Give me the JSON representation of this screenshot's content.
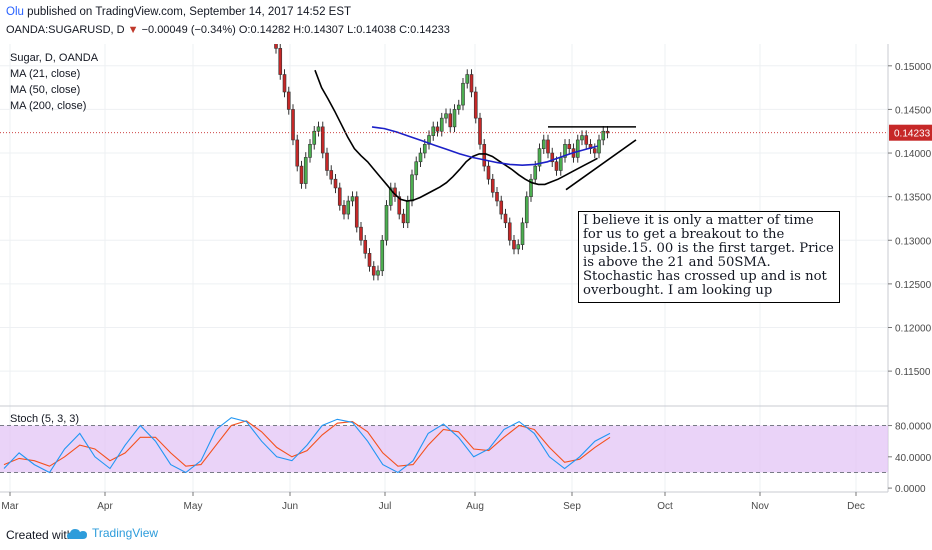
{
  "header": {
    "author": "Olu",
    "published": "published on TradingView.com, September 14, 2017 14:52 EST",
    "symbol": "OANDA:SUGARUSD, D",
    "change_arrow": "▼",
    "change": "−0.00049 (−0.34%)",
    "ohlc": "O:0.14282 H:0.14307 L:0.14038 C:0.14233"
  },
  "legend": [
    "Sugar, D, OANDA",
    "MA (21, close)",
    "MA (50, close)",
    "MA (200, close)"
  ],
  "stoch_label": "Stoch (5, 3, 3)",
  "annotation": "I believe it is only a matter of time for us to get a breakout to the upside.15. 00 is the first target. Price is above the 21 and 50SMA. Stochastic has crossed up and is not overbought. I am looking up",
  "footer": {
    "created": "Created with",
    "brand": "TradingView"
  },
  "colors": {
    "up": "#4caf50",
    "down": "#c62828",
    "ma21": "#000000",
    "ma50": "#1c20c8",
    "stoch_k": "#2196f3",
    "stoch_d": "#f4511e",
    "band_fill": "#e3c4f5",
    "price_line": "#c62828"
  },
  "chart_data": {
    "type": "candlestick",
    "price_axis": {
      "ticks": [
        "0.15000",
        "0.14500",
        "0.14000",
        "0.13500",
        "0.13000",
        "0.12500",
        "0.12000",
        "0.11500"
      ],
      "range": [
        0.111,
        0.1525
      ]
    },
    "last_price_label": "0.14233",
    "last_price": 0.14233,
    "time_axis": [
      "Mar",
      "Apr",
      "May",
      "Jun",
      "Jul",
      "Aug",
      "Sep",
      "Oct",
      "Nov",
      "Dec"
    ],
    "stoch_axis": {
      "ticks": [
        "80.0000",
        "40.0000",
        "0.0000"
      ],
      "range": [
        -5,
        105
      ],
      "upper_band": 80,
      "lower_band": 20
    },
    "closes": [
      0.152,
      0.149,
      0.147,
      0.145,
      0.1415,
      0.1385,
      0.1365,
      0.1395,
      0.141,
      0.1425,
      0.143,
      0.14,
      0.138,
      0.137,
      0.136,
      0.134,
      0.133,
      0.1345,
      0.135,
      0.1315,
      0.13,
      0.1285,
      0.127,
      0.126,
      0.1265,
      0.13,
      0.134,
      0.136,
      0.135,
      0.133,
      0.132,
      0.1345,
      0.1375,
      0.139,
      0.14,
      0.141,
      0.142,
      0.143,
      0.1425,
      0.144,
      0.1445,
      0.143,
      0.145,
      0.1455,
      0.148,
      0.149,
      0.147,
      0.144,
      0.141,
      0.1385,
      0.137,
      0.1355,
      0.1345,
      0.133,
      0.132,
      0.13,
      0.129,
      0.1295,
      0.132,
      0.135,
      0.137,
      0.1385,
      0.1405,
      0.1415,
      0.14,
      0.139,
      0.138,
      0.1395,
      0.141,
      0.1405,
      0.1395,
      0.1415,
      0.142,
      0.141,
      0.1405,
      0.14,
      0.1415,
      0.1425,
      0.1423
    ],
    "ma21": [
      0.1495,
      0.1475,
      0.1462,
      0.1448,
      0.1433,
      0.1418,
      0.1405,
      0.1397,
      0.139,
      0.1381,
      0.1372,
      0.1363,
      0.1354,
      0.1347,
      0.1345,
      0.1346,
      0.1349,
      0.1353,
      0.1357,
      0.1361,
      0.1366,
      0.1373,
      0.1381,
      0.139,
      0.1396,
      0.1399,
      0.1399,
      0.1396,
      0.1391,
      0.1386,
      0.1381,
      0.1375,
      0.137,
      0.1366,
      0.1364,
      0.1364,
      0.1367,
      0.137,
      0.1374,
      0.1378,
      0.1382,
      0.1386,
      0.139,
      0.1394
    ],
    "ma50": [
      0.143,
      0.1428,
      0.1424,
      0.1419,
      0.1414,
      0.1409,
      0.1404,
      0.1399,
      0.1395,
      0.1392,
      0.1389,
      0.1387,
      0.1386,
      0.1387,
      0.139,
      0.1395,
      0.14,
      0.1404,
      0.1408
    ],
    "stoch_k": [
      25,
      45,
      30,
      20,
      50,
      70,
      40,
      25,
      55,
      80,
      60,
      30,
      20,
      35,
      75,
      90,
      85,
      60,
      40,
      35,
      55,
      80,
      88,
      84,
      60,
      30,
      20,
      35,
      70,
      82,
      65,
      40,
      50,
      75,
      85,
      70,
      40,
      25,
      40,
      60,
      70
    ],
    "stoch_d": [
      30,
      38,
      35,
      28,
      40,
      55,
      50,
      35,
      45,
      65,
      65,
      45,
      28,
      30,
      55,
      80,
      86,
      72,
      52,
      40,
      48,
      68,
      83,
      85,
      72,
      45,
      28,
      30,
      55,
      75,
      72,
      50,
      48,
      65,
      80,
      75,
      52,
      33,
      37,
      52,
      65
    ]
  }
}
